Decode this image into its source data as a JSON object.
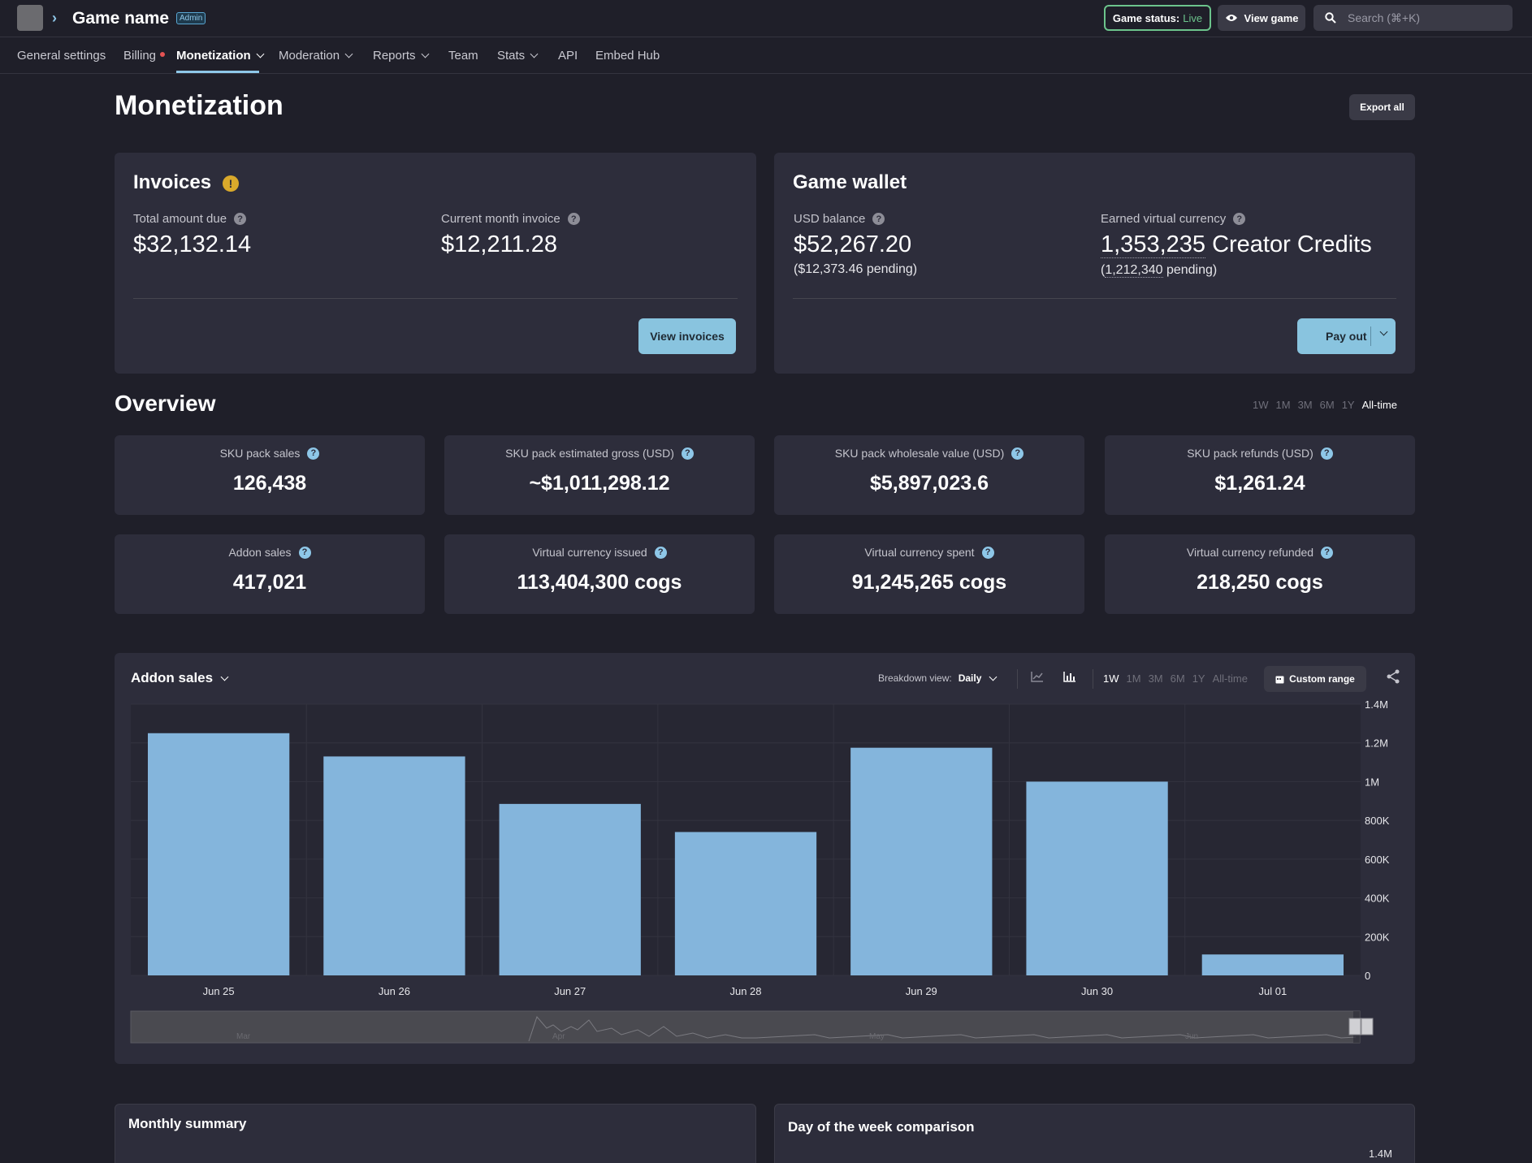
{
  "header": {
    "game_name": "Game name",
    "admin_badge": "Admin",
    "status_label": "Game status:",
    "status_value": "Live",
    "view_game_label": "View game",
    "search_placeholder": "Search (⌘+K)"
  },
  "tabs": [
    {
      "label": "General settings"
    },
    {
      "label": "Billing"
    },
    {
      "label": "Monetization"
    },
    {
      "label": "Moderation"
    },
    {
      "label": "Reports"
    },
    {
      "label": "Team"
    },
    {
      "label": "Stats"
    },
    {
      "label": "API"
    },
    {
      "label": "Embed Hub"
    }
  ],
  "page": {
    "title": "Monetization",
    "export_label": "Export all"
  },
  "invoices": {
    "title": "Invoices",
    "total_label": "Total amount due",
    "total_value": "$32,132.14",
    "month_label": "Current month invoice",
    "month_value": "$12,211.28",
    "button_label": "View invoices"
  },
  "wallet": {
    "title": "Game wallet",
    "usd_label": "USD balance",
    "usd_value": "$52,267.20",
    "usd_pending": "($12,373.46 pending)",
    "vc_label": "Earned virtual currency",
    "vc_amount": "1,353,235",
    "vc_unit": "Creator Credits",
    "vc_pending_open": "(",
    "vc_pending_amount": "1,212,340",
    "vc_pending_close": " pending)",
    "button_label": "Pay out"
  },
  "overview": {
    "title": "Overview",
    "ranges": [
      "1W",
      "1M",
      "3M",
      "6M",
      "1Y",
      "All-time"
    ],
    "selected_range": "All-time",
    "stats": [
      {
        "label": "SKU pack sales",
        "value": "126,438"
      },
      {
        "label": "SKU pack estimated gross (USD)",
        "value": "~$1,011,298.12"
      },
      {
        "label": "SKU pack wholesale value (USD)",
        "value": "$5,897,023.6"
      },
      {
        "label": "SKU pack refunds (USD)",
        "value": "$1,261.24"
      },
      {
        "label": "Addon sales",
        "value": "417,021"
      },
      {
        "label": "Virtual currency issued",
        "value": "113,404,300 cogs"
      },
      {
        "label": "Virtual currency spent",
        "value": "91,245,265 cogs"
      },
      {
        "label": "Virtual currency refunded",
        "value": "218,250 cogs"
      }
    ]
  },
  "addon_chart": {
    "metric_label": "Addon sales",
    "breakdown_label": "Breakdown view:",
    "breakdown_value": "Daily",
    "ranges": [
      "1W",
      "1M",
      "3M",
      "6M",
      "1Y",
      "All-time"
    ],
    "selected_range": "1W",
    "custom_range_label": "Custom range",
    "navigator_labels": [
      "Mar",
      "Apr",
      "May",
      "Jun"
    ]
  },
  "chart_data": {
    "type": "bar",
    "title": "Addon sales",
    "categories": [
      "Jun 25",
      "Jun 26",
      "Jun 27",
      "Jun 28",
      "Jun 29",
      "Jun 30",
      "Jul 01"
    ],
    "values": [
      1250000,
      1130000,
      885000,
      740000,
      1175000,
      1000000,
      108000
    ],
    "ylim": [
      0,
      1400000
    ],
    "yticks": [
      0,
      200000,
      400000,
      600000,
      800000,
      1000000,
      1200000,
      1400000
    ],
    "ytick_labels": [
      "0",
      "200K",
      "400K",
      "600K",
      "800K",
      "1M",
      "1.2M",
      "1.4M"
    ],
    "grid": true,
    "color": "#84b5dc"
  },
  "monthly_summary": {
    "title": "Monthly summary"
  },
  "day_of_week": {
    "title": "Day of the week comparison",
    "ytick_top": "1.4M"
  },
  "colors": {
    "accent": "#8ec7e8",
    "live": "#6cc48c",
    "warning": "#d9a92b",
    "bar": "#84b5dc",
    "background": "#1f1f29",
    "card": "#2d2d3b"
  }
}
